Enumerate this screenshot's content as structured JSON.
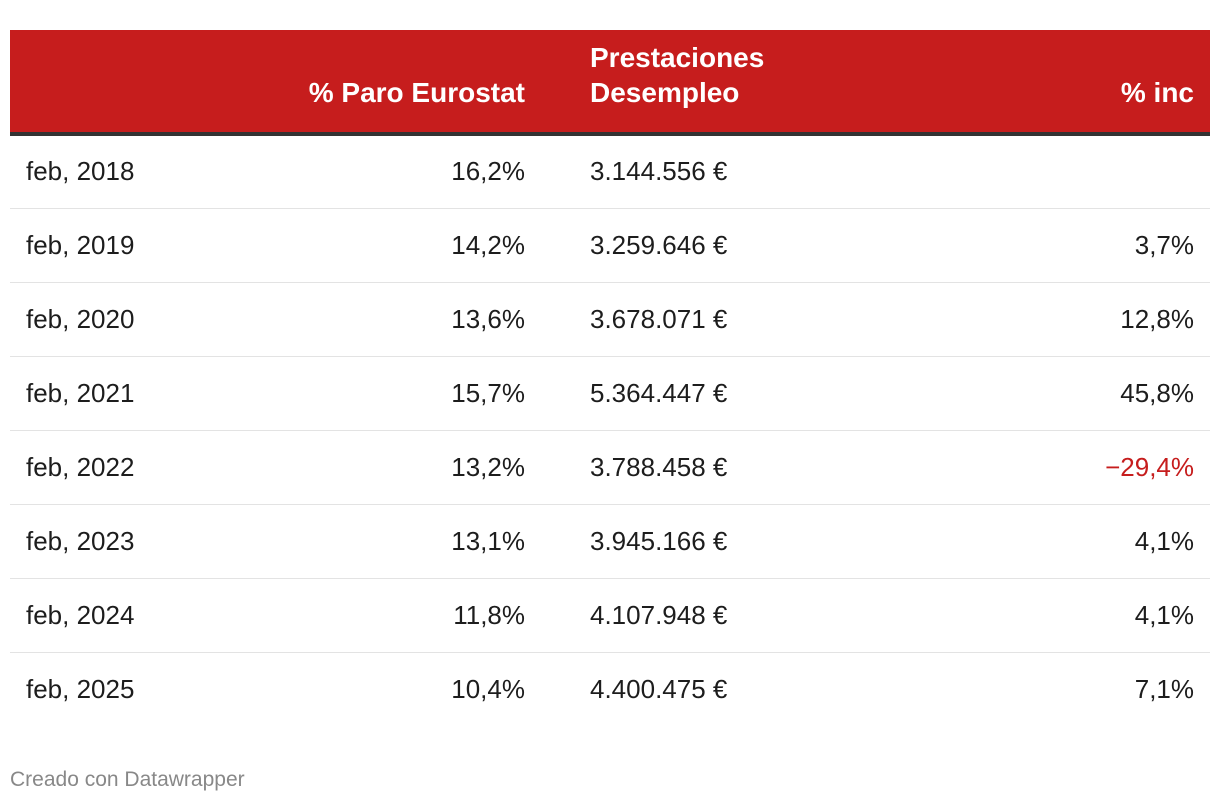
{
  "chart_data": {
    "type": "table",
    "columns": [
      "",
      "% Paro Eurostat",
      "Prestaciones Desempleo",
      "% inc"
    ],
    "header": {
      "fecha": "",
      "paro": "% Paro Eurostat",
      "prestaciones_line1": "Prestaciones",
      "prestaciones_line2": "Desempleo",
      "inc": "% inc"
    },
    "rows": [
      {
        "fecha": "feb, 2018",
        "paro": "16,2%",
        "prestaciones": "3.144.556 €",
        "inc": "",
        "negative": false
      },
      {
        "fecha": "feb, 2019",
        "paro": "14,2%",
        "prestaciones": "3.259.646 €",
        "inc": "3,7%",
        "negative": false
      },
      {
        "fecha": "feb, 2020",
        "paro": "13,6%",
        "prestaciones": "3.678.071 €",
        "inc": "12,8%",
        "negative": false
      },
      {
        "fecha": "feb, 2021",
        "paro": "15,7%",
        "prestaciones": "5.364.447 €",
        "inc": "45,8%",
        "negative": false
      },
      {
        "fecha": "feb, 2022",
        "paro": "13,2%",
        "prestaciones": "3.788.458 €",
        "inc": "−29,4%",
        "negative": true
      },
      {
        "fecha": "feb, 2023",
        "paro": "13,1%",
        "prestaciones": "3.945.166 €",
        "inc": "4,1%",
        "negative": false
      },
      {
        "fecha": "feb, 2024",
        "paro": "11,8%",
        "prestaciones": "4.107.948 €",
        "inc": "4,1%",
        "negative": false
      },
      {
        "fecha": "feb, 2025",
        "paro": "10,4%",
        "prestaciones": "4.400.475 €",
        "inc": "7,1%",
        "negative": false
      }
    ]
  },
  "colors": {
    "header_bg": "#c61d1d",
    "negative": "#c61d1d",
    "footer": "#888888"
  },
  "footer": {
    "credit": "Creado con Datawrapper"
  }
}
